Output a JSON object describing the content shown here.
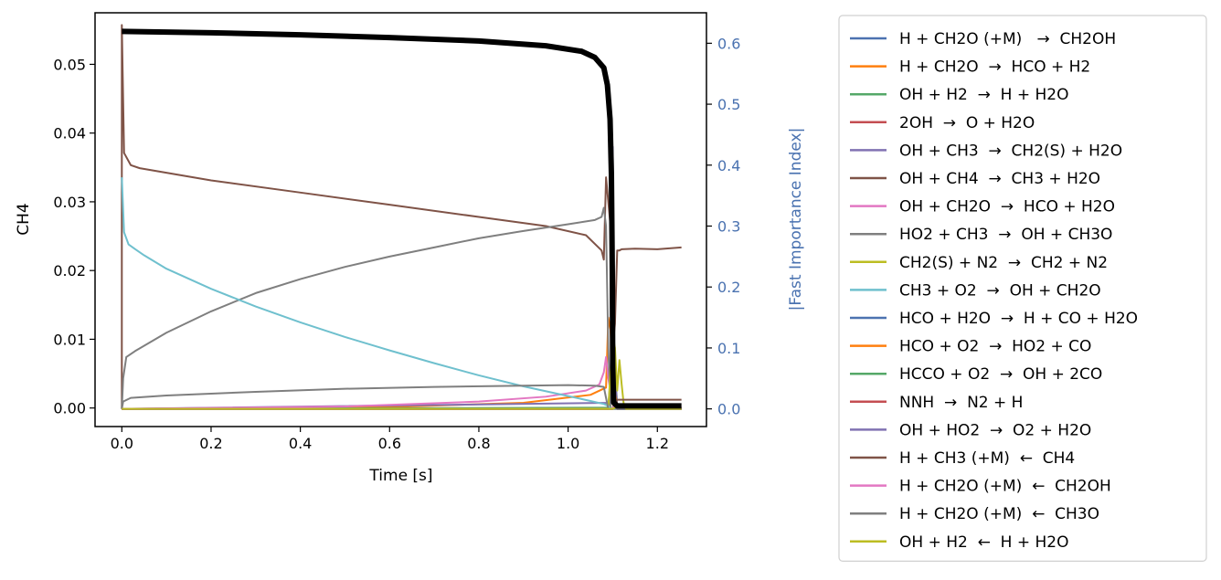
{
  "chart_data": {
    "type": "line",
    "xlabel": "Time [s]",
    "ylabel": "CH4",
    "y2label": "|Fast Importance Index|",
    "xlim": [
      -0.06,
      1.31
    ],
    "ylim": [
      -0.0027,
      0.0575
    ],
    "y2lim": [
      -0.029,
      0.65
    ],
    "xticks": [
      "0.0",
      "0.2",
      "0.4",
      "0.6",
      "0.8",
      "1.0",
      "1.2"
    ],
    "yticks": [
      "0.00",
      "0.01",
      "0.02",
      "0.03",
      "0.04",
      "0.05"
    ],
    "y2ticks": [
      "0.0",
      "0.1",
      "0.2",
      "0.3",
      "0.4",
      "0.5",
      "0.6"
    ],
    "grid": false,
    "legend_position": "outside-right",
    "right_axis_color": "#4a72b0",
    "primary_series": {
      "name": "CH4",
      "color": "#000000",
      "points": [
        [
          0.0,
          0.0548
        ],
        [
          0.2,
          0.0546
        ],
        [
          0.4,
          0.0543
        ],
        [
          0.6,
          0.0539
        ],
        [
          0.8,
          0.0534
        ],
        [
          0.95,
          0.0527
        ],
        [
          1.03,
          0.0519
        ],
        [
          1.06,
          0.051
        ],
        [
          1.08,
          0.0495
        ],
        [
          1.088,
          0.047
        ],
        [
          1.094,
          0.042
        ],
        [
          1.097,
          0.034
        ],
        [
          1.099,
          0.02
        ],
        [
          1.1,
          0.006
        ],
        [
          1.102,
          0.0008
        ],
        [
          1.11,
          0.0003
        ],
        [
          1.254,
          0.0003
        ]
      ]
    },
    "series": [
      {
        "name": "H + CH2O (+M)   →  CH2OH",
        "color": "#4c72b0",
        "points": [
          [
            0.0,
            0.0
          ],
          [
            1.09,
            0.0
          ],
          [
            1.095,
            0.02
          ],
          [
            1.1,
            0.11
          ],
          [
            1.105,
            0.05
          ],
          [
            1.11,
            0.0
          ],
          [
            1.254,
            0.0
          ]
        ]
      },
      {
        "name": "H + CH2O  →  HCO + H2",
        "color": "#ff7f0e",
        "points": [
          [
            0.0,
            0.0
          ],
          [
            0.6,
            0.003
          ],
          [
            0.9,
            0.01
          ],
          [
            1.05,
            0.023
          ],
          [
            1.085,
            0.035
          ],
          [
            1.09,
            0.15
          ],
          [
            1.095,
            0.13
          ],
          [
            1.1,
            0.06
          ],
          [
            1.105,
            0.02
          ],
          [
            1.11,
            0.0
          ],
          [
            1.254,
            0.0
          ]
        ]
      },
      {
        "name": "OH + H2  →  H + H2O",
        "color": "#55a868",
        "points": [
          [
            0.0,
            0.0
          ],
          [
            1.09,
            0.002
          ],
          [
            1.095,
            0.05
          ],
          [
            1.1,
            0.12
          ],
          [
            1.105,
            0.08
          ],
          [
            1.11,
            0.0
          ],
          [
            1.254,
            0.0
          ]
        ]
      },
      {
        "name": "2OH  →  O + H2O",
        "color": "#c44e52",
        "points": [
          [
            0.0,
            0.0
          ],
          [
            1.09,
            0.0
          ],
          [
            1.095,
            0.03
          ],
          [
            1.1,
            0.09
          ],
          [
            1.105,
            0.04
          ],
          [
            1.11,
            0.0
          ],
          [
            1.254,
            0.0
          ]
        ]
      },
      {
        "name": "OH + CH3  →  CH2(S) + H2O",
        "color": "#8172b2",
        "points": [
          [
            0.0,
            0.0
          ],
          [
            1.095,
            0.01
          ],
          [
            1.1,
            0.43
          ],
          [
            1.103,
            0.1
          ],
          [
            1.11,
            0.0
          ],
          [
            1.254,
            0.0
          ]
        ]
      },
      {
        "name": "OH + CH4  →  CH3 + H2O",
        "color": "#7f5347",
        "points": [
          [
            0.0,
            0.0
          ],
          [
            0.0,
            0.63
          ],
          [
            0.005,
            0.42
          ],
          [
            0.02,
            0.4
          ],
          [
            0.04,
            0.395
          ],
          [
            0.2,
            0.375
          ],
          [
            0.4,
            0.355
          ],
          [
            0.6,
            0.335
          ],
          [
            0.8,
            0.315
          ],
          [
            0.95,
            0.3
          ],
          [
            1.04,
            0.285
          ],
          [
            1.075,
            0.26
          ],
          [
            1.08,
            0.245
          ],
          [
            1.085,
            0.38
          ],
          [
            1.09,
            0.34
          ],
          [
            1.095,
            0.3
          ],
          [
            1.1,
            0.1
          ],
          [
            1.105,
            0.14
          ],
          [
            1.11,
            0.26
          ],
          [
            1.115,
            0.26
          ],
          [
            1.12,
            0.262
          ],
          [
            1.15,
            0.263
          ],
          [
            1.2,
            0.262
          ],
          [
            1.254,
            0.265
          ]
        ]
      },
      {
        "name": "OH + CH2O  →  HCO + H2O",
        "color": "#e377c2",
        "points": [
          [
            0.0,
            0.0
          ],
          [
            0.5,
            0.004
          ],
          [
            0.8,
            0.012
          ],
          [
            0.95,
            0.02
          ],
          [
            1.04,
            0.03
          ],
          [
            1.07,
            0.04
          ],
          [
            1.08,
            0.06
          ],
          [
            1.085,
            0.085
          ],
          [
            1.09,
            0.05
          ],
          [
            1.1,
            0.01
          ],
          [
            1.11,
            0.0
          ],
          [
            1.254,
            0.0
          ]
        ]
      },
      {
        "name": "HO2 + CH3  →  OH + CH3O",
        "color": "#7f7f7f",
        "points": [
          [
            0.0,
            0.0
          ],
          [
            0.003,
            0.05
          ],
          [
            0.01,
            0.085
          ],
          [
            0.03,
            0.095
          ],
          [
            0.1,
            0.125
          ],
          [
            0.2,
            0.16
          ],
          [
            0.3,
            0.19
          ],
          [
            0.4,
            0.213
          ],
          [
            0.5,
            0.233
          ],
          [
            0.6,
            0.25
          ],
          [
            0.7,
            0.265
          ],
          [
            0.8,
            0.28
          ],
          [
            0.9,
            0.292
          ],
          [
            1.0,
            0.303
          ],
          [
            1.06,
            0.31
          ],
          [
            1.075,
            0.315
          ],
          [
            1.08,
            0.33
          ],
          [
            1.085,
            0.3
          ],
          [
            1.09,
            0.1
          ],
          [
            1.095,
            0.0
          ],
          [
            1.254,
            0.0
          ]
        ]
      },
      {
        "name": "CH2(S) + N2  →  CH2 + N2",
        "color": "#bcbd22",
        "points": [
          [
            0.0,
            0.0
          ],
          [
            1.09,
            0.0
          ],
          [
            1.095,
            0.06
          ],
          [
            1.1,
            0.12
          ],
          [
            1.105,
            0.1
          ],
          [
            1.11,
            0.03
          ],
          [
            1.115,
            0.08
          ],
          [
            1.12,
            0.04
          ],
          [
            1.125,
            0.005
          ],
          [
            1.254,
            0.0
          ]
        ]
      },
      {
        "name": "CH3 + O2  →  OH + CH2O",
        "color": "#6fc0ce",
        "points": [
          [
            0.0,
            0.38
          ],
          [
            0.005,
            0.29
          ],
          [
            0.015,
            0.27
          ],
          [
            0.03,
            0.262
          ],
          [
            0.05,
            0.252
          ],
          [
            0.1,
            0.23
          ],
          [
            0.2,
            0.197
          ],
          [
            0.3,
            0.168
          ],
          [
            0.4,
            0.142
          ],
          [
            0.5,
            0.118
          ],
          [
            0.6,
            0.096
          ],
          [
            0.7,
            0.075
          ],
          [
            0.8,
            0.055
          ],
          [
            0.9,
            0.037
          ],
          [
            1.0,
            0.021
          ],
          [
            1.05,
            0.013
          ],
          [
            1.08,
            0.008
          ],
          [
            1.09,
            0.005
          ],
          [
            1.095,
            0.0
          ],
          [
            1.254,
            0.0
          ]
        ]
      },
      {
        "name": "HCO + H2O  →  H + CO + H2O",
        "color": "#4c72b0",
        "points": [
          [
            0.0,
            0.0
          ],
          [
            1.1,
            0.0
          ],
          [
            1.105,
            0.02
          ],
          [
            1.11,
            0.0
          ],
          [
            1.254,
            0.0
          ]
        ]
      },
      {
        "name": "HCO + O2  →  HO2 + CO",
        "color": "#ff7f0e",
        "points": [
          [
            0.0,
            0.0
          ],
          [
            1.1,
            0.0
          ],
          [
            1.105,
            0.025
          ],
          [
            1.11,
            0.005
          ],
          [
            1.254,
            0.002
          ]
        ]
      },
      {
        "name": "HCCO + O2  →  OH + 2CO",
        "color": "#55a868",
        "points": [
          [
            0.0,
            0.0
          ],
          [
            1.1,
            0.0
          ],
          [
            1.105,
            0.015
          ],
          [
            1.11,
            0.0
          ],
          [
            1.254,
            0.0
          ]
        ]
      },
      {
        "name": "NNH  →  N2 + H",
        "color": "#c44e52",
        "points": [
          [
            0.0,
            0.0
          ],
          [
            1.1,
            0.0
          ],
          [
            1.105,
            0.01
          ],
          [
            1.11,
            0.0
          ],
          [
            1.254,
            0.0
          ]
        ]
      },
      {
        "name": "OH + HO2  →  O2 + H2O",
        "color": "#8172b2",
        "points": [
          [
            0.0,
            0.0
          ],
          [
            1.1,
            0.0
          ],
          [
            1.105,
            0.012
          ],
          [
            1.11,
            0.0
          ],
          [
            1.254,
            0.0
          ]
        ]
      },
      {
        "name": "H + CH3 (+M)  ←  CH4",
        "color": "#7f5347",
        "points": [
          [
            0.0,
            0.0
          ],
          [
            1.1,
            0.0
          ],
          [
            1.105,
            0.008
          ],
          [
            1.11,
            0.015
          ],
          [
            1.254,
            0.015
          ]
        ]
      },
      {
        "name": "H + CH2O (+M)  ←  CH2OH",
        "color": "#e377c2",
        "points": [
          [
            0.0,
            0.0
          ],
          [
            1.1,
            0.0
          ],
          [
            1.105,
            0.008
          ],
          [
            1.11,
            0.003
          ],
          [
            1.254,
            0.002
          ]
        ]
      },
      {
        "name": "H + CH2O (+M)  ←  CH3O",
        "color": "#7f7f7f",
        "points": [
          [
            0.0,
            0.0
          ],
          [
            0.003,
            0.012
          ],
          [
            0.02,
            0.018
          ],
          [
            0.1,
            0.022
          ],
          [
            0.3,
            0.028
          ],
          [
            0.5,
            0.033
          ],
          [
            0.7,
            0.036
          ],
          [
            0.9,
            0.038
          ],
          [
            1.0,
            0.039
          ],
          [
            1.06,
            0.038
          ],
          [
            1.08,
            0.036
          ],
          [
            1.09,
            0.0
          ],
          [
            1.254,
            0.0
          ]
        ]
      },
      {
        "name": "OH + H2  ←  H + H2O",
        "color": "#bcbd22",
        "points": [
          [
            0.0,
            0.0
          ],
          [
            1.1,
            0.0
          ],
          [
            1.11,
            0.004
          ],
          [
            1.125,
            0.004
          ],
          [
            1.13,
            0.0
          ],
          [
            1.254,
            0.0
          ]
        ]
      }
    ]
  }
}
